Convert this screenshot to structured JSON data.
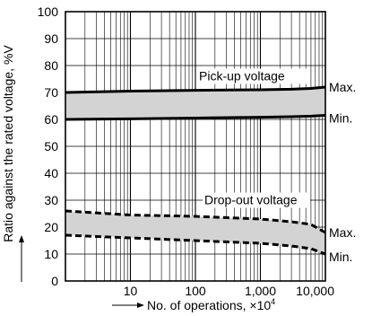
{
  "chart_data": {
    "type": "line",
    "xlabel": "No. of operations, ×10",
    "xlabel_superscript": "4",
    "ylabel": "Ratio against the rated voltage, %V",
    "x_scale": "log",
    "xlim": [
      1,
      10000
    ],
    "ylim": [
      0,
      100
    ],
    "x_ticks": [
      {
        "value": 10,
        "label": "10"
      },
      {
        "value": 100,
        "label": "100"
      },
      {
        "value": 1000,
        "label": "1,000"
      },
      {
        "value": 10000,
        "label": "10,000"
      }
    ],
    "y_ticks": [
      0,
      10,
      20,
      30,
      40,
      50,
      60,
      70,
      80,
      90,
      100
    ],
    "grid": true,
    "bands": [
      {
        "label": "Pick-up voltage",
        "line_style": "solid",
        "fill": "#d3d3d3",
        "x": [
          1,
          10,
          100,
          1000,
          3000,
          6000,
          10000
        ],
        "max": [
          70,
          70.5,
          70.8,
          71,
          71.2,
          71.5,
          72
        ],
        "min": [
          60,
          60.2,
          60.5,
          60.8,
          61,
          61.2,
          61.5
        ],
        "max_label": "Max.",
        "min_label": "Min."
      },
      {
        "label": "Drop-out voltage",
        "line_style": "dashed",
        "fill": "#d3d3d3",
        "x": [
          1,
          10,
          100,
          1000,
          3000,
          6000,
          10000
        ],
        "max": [
          26,
          24.5,
          24,
          23,
          22,
          21,
          18
        ],
        "min": [
          17,
          16,
          15,
          14,
          13,
          12,
          10
        ],
        "max_label": "Max.",
        "min_label": "Min."
      }
    ]
  }
}
